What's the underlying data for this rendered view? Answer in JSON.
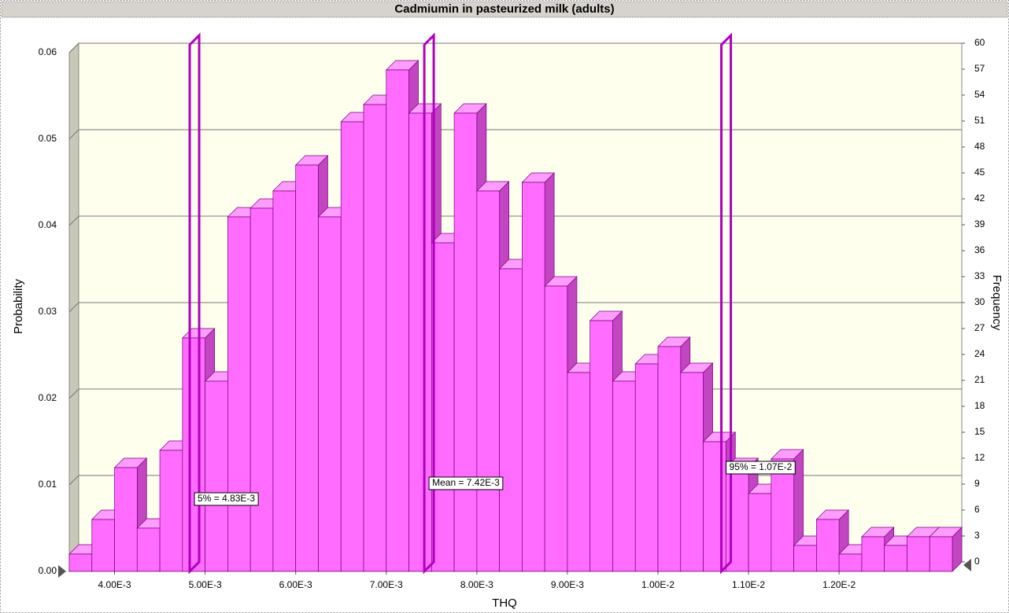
{
  "chart_data": {
    "type": "histogram",
    "title": "Cadmiumin in pasteurized milk (adults)",
    "x_label": "THQ",
    "y_label": "Probability",
    "y2_label": "Frequency",
    "bins": [
      0.0035,
      0.00375,
      0.004,
      0.00425,
      0.0045,
      0.00475,
      0.005,
      0.00525,
      0.0055,
      0.00575,
      0.006,
      0.00625,
      0.0065,
      0.00675,
      0.007,
      0.00725,
      0.0075,
      0.00775,
      0.008,
      0.00825,
      0.0085,
      0.00875,
      0.009,
      0.00925,
      0.0095,
      0.00975,
      0.01,
      0.01025,
      0.0105,
      0.01075,
      0.011,
      0.01125,
      0.0115,
      0.01175,
      0.012,
      0.01225,
      0.0125,
      0.01275,
      0.013,
      0.01325
    ],
    "series": [
      {
        "axis": "y2",
        "color": "#ff6cff",
        "values": [
          2,
          6,
          12,
          5,
          14,
          27,
          22,
          41,
          42,
          44,
          47,
          41,
          52,
          54,
          58,
          53,
          38,
          53,
          44,
          35,
          45,
          33,
          23,
          29,
          22,
          24,
          26,
          23,
          15,
          12,
          9,
          13,
          3,
          6,
          2,
          4,
          3,
          4,
          4
        ]
      }
    ],
    "xlim": [
      0.0035,
      0.01325
    ],
    "xticks": [
      {
        "value": 0.004,
        "label": "4.00E-3"
      },
      {
        "value": 0.005,
        "label": "5.00E-3"
      },
      {
        "value": 0.006,
        "label": "6.00E-3"
      },
      {
        "value": 0.007,
        "label": "7.00E-3"
      },
      {
        "value": 0.008,
        "label": "8.00E-3"
      },
      {
        "value": 0.009,
        "label": "9.00E-3"
      },
      {
        "value": 0.01,
        "label": "1.00E-2"
      },
      {
        "value": 0.011,
        "label": "1.10E-2"
      },
      {
        "value": 0.012,
        "label": "1.20E-2"
      }
    ],
    "ylim": [
      0,
      0.06
    ],
    "yticks": [
      {
        "value": 0,
        "label": "0.00"
      },
      0.01,
      0.02,
      0.03,
      0.04,
      0.05,
      0.06
    ],
    "y2lim": [
      0,
      60
    ],
    "y2ticks": [
      0,
      3,
      6,
      9,
      12,
      15,
      18,
      21,
      24,
      27,
      30,
      33,
      36,
      39,
      42,
      45,
      48,
      51,
      54,
      57,
      60
    ],
    "grid": true,
    "markers": [
      {
        "value": 0.00483,
        "label": "5% = 4.83E-3"
      },
      {
        "value": 0.00742,
        "label": "Mean = 7.42E-3"
      },
      {
        "value": 0.0107,
        "label": "95% = 1.07E-2"
      }
    ],
    "marker_color": "#b000c0"
  }
}
